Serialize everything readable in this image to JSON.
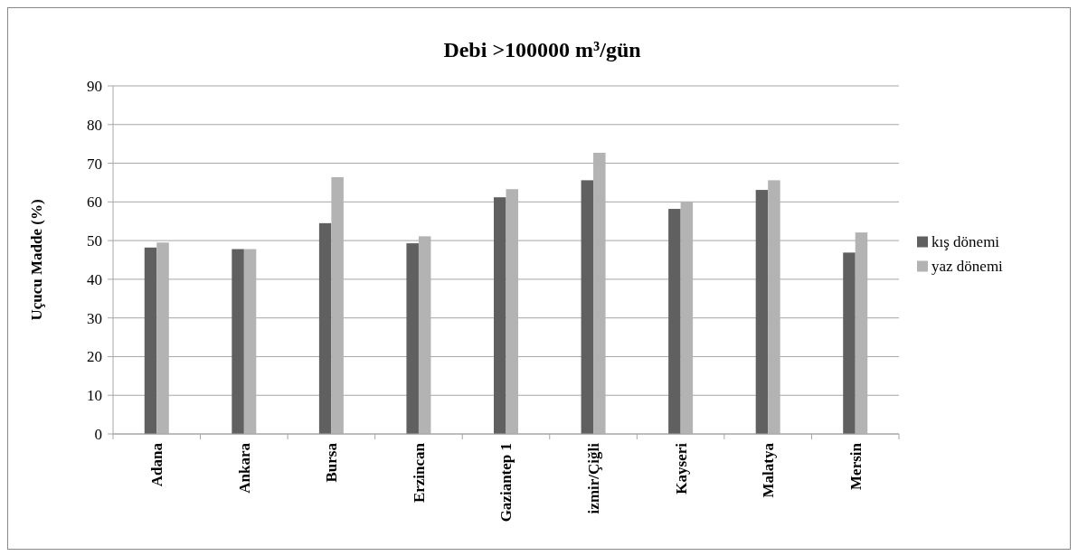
{
  "chart_data": {
    "type": "bar",
    "title": "Debi >100000 m³/gün",
    "ylabel": "Uçucu Madde (%)",
    "categories": [
      "Adana",
      "Ankara",
      "Bursa",
      "Erzincan",
      "Gaziantep 1",
      "izmir/Çiğli",
      "Kayseri",
      "Malatya",
      "Mersin"
    ],
    "series": [
      {
        "name": "kış dönemi",
        "color": "#606060",
        "values": [
          48.2,
          47.8,
          54.5,
          49.3,
          61.2,
          65.6,
          58.2,
          63.1,
          46.9
        ]
      },
      {
        "name": "yaz dönemi",
        "color": "#b3b3b3",
        "values": [
          49.5,
          47.8,
          66.4,
          51.1,
          63.3,
          72.7,
          60.1,
          65.6,
          52.1
        ]
      }
    ],
    "ylim": [
      0,
      90
    ],
    "yticks": [
      0,
      10,
      20,
      30,
      40,
      50,
      60,
      70,
      80,
      90
    ],
    "grid": "y",
    "legend": "right"
  }
}
